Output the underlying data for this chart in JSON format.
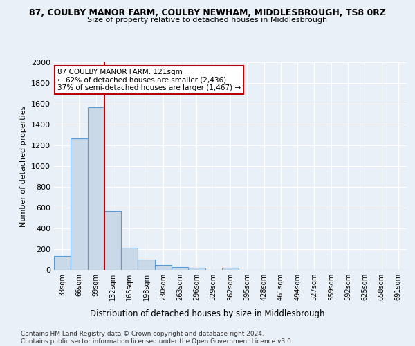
{
  "title": "87, COULBY MANOR FARM, COULBY NEWHAM, MIDDLESBROUGH, TS8 0RZ",
  "subtitle": "Size of property relative to detached houses in Middlesbrough",
  "xlabel": "Distribution of detached houses by size in Middlesbrough",
  "ylabel": "Number of detached properties",
  "footer_line1": "Contains HM Land Registry data © Crown copyright and database right 2024.",
  "footer_line2": "Contains public sector information licensed under the Open Government Licence v3.0.",
  "bar_labels": [
    "33sqm",
    "66sqm",
    "99sqm",
    "132sqm",
    "165sqm",
    "198sqm",
    "230sqm",
    "263sqm",
    "296sqm",
    "329sqm",
    "362sqm",
    "395sqm",
    "428sqm",
    "461sqm",
    "494sqm",
    "527sqm",
    "559sqm",
    "592sqm",
    "625sqm",
    "658sqm",
    "691sqm"
  ],
  "bar_values": [
    135,
    1270,
    1570,
    565,
    215,
    100,
    50,
    28,
    22,
    0,
    20,
    0,
    0,
    0,
    0,
    0,
    0,
    0,
    0,
    0,
    0
  ],
  "bar_color": "#c9d9e8",
  "bar_edge_color": "#5b9bd5",
  "vline_x": 2.5,
  "vline_color": "#c00000",
  "annotation_text": "87 COULBY MANOR FARM: 121sqm\n← 62% of detached houses are smaller (2,436)\n37% of semi-detached houses are larger (1,467) →",
  "annotation_box_color": "white",
  "annotation_box_edge": "#c00000",
  "ylim": [
    0,
    2000
  ],
  "yticks": [
    0,
    200,
    400,
    600,
    800,
    1000,
    1200,
    1400,
    1600,
    1800,
    2000
  ],
  "bg_color": "#eaf0f8",
  "plot_bg_color": "#eaf0f8",
  "grid_color": "white"
}
